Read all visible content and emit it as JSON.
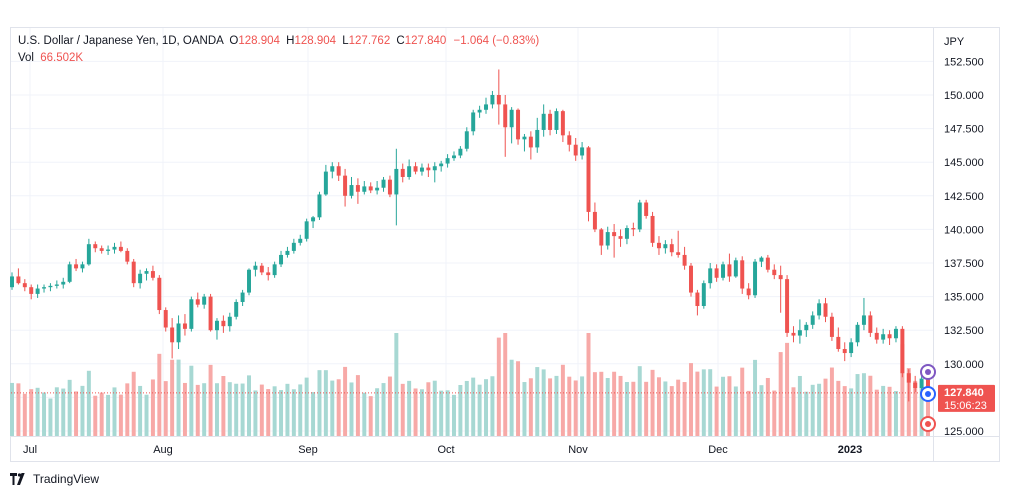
{
  "legend": {
    "symbol": "U.S. Dollar / Japanese Yen, 1D, OANDA",
    "o_key": "O",
    "open": "128.904",
    "h_key": "H",
    "high": "128.904",
    "l_key": "L",
    "low": "127.762",
    "c_key": "C",
    "close": "127.840",
    "change": "−1.064 (−0.83%)",
    "vol_key": "Vol",
    "vol": "66.502K"
  },
  "branding": {
    "logo_text": "TradingView",
    "icon": "tradingview-logo-icon"
  },
  "colors": {
    "up": "#26a69a",
    "down": "#ef5350",
    "vol_up": "#a7d8d3",
    "vol_down": "#f7a9a7",
    "grid": "#f0f3fa"
  },
  "chart_data": {
    "type": "candlestick",
    "currency": "JPY",
    "y_ticks": [
      "152.500",
      "150.000",
      "147.500",
      "145.000",
      "142.500",
      "140.000",
      "137.500",
      "135.000",
      "132.500",
      "130.000",
      "127.500",
      "125.000"
    ],
    "x_ticks": [
      "Jul",
      "Aug",
      "Sep",
      "Oct",
      "Nov",
      "Dec",
      "2023"
    ],
    "ylim": [
      125.0,
      153.0
    ],
    "last_price": "127.840",
    "countdown": "15:06:23",
    "candles": [
      [
        135.7,
        136.8,
        135.5,
        136.5
      ],
      [
        136.5,
        137.1,
        135.9,
        136.0
      ],
      [
        136.0,
        136.3,
        135.4,
        135.7
      ],
      [
        135.7,
        135.9,
        134.8,
        135.2
      ],
      [
        135.2,
        135.9,
        134.9,
        135.6
      ],
      [
        135.6,
        135.9,
        135.3,
        135.7
      ],
      [
        135.7,
        136.0,
        135.4,
        135.8
      ],
      [
        135.8,
        136.2,
        135.6,
        135.9
      ],
      [
        135.9,
        136.4,
        135.6,
        136.1
      ],
      [
        136.1,
        137.6,
        136.0,
        137.4
      ],
      [
        137.4,
        137.8,
        136.9,
        137.1
      ],
      [
        137.1,
        137.6,
        136.8,
        137.4
      ],
      [
        137.4,
        139.3,
        137.3,
        138.9
      ],
      [
        138.9,
        139.1,
        138.3,
        138.6
      ],
      [
        138.6,
        138.8,
        138.2,
        138.4
      ],
      [
        138.4,
        138.8,
        138.1,
        138.5
      ],
      [
        138.5,
        139.0,
        138.2,
        138.7
      ],
      [
        138.7,
        139.1,
        138.3,
        138.4
      ],
      [
        138.4,
        138.6,
        137.4,
        137.6
      ],
      [
        137.6,
        137.8,
        135.7,
        136.0
      ],
      [
        136.0,
        137.0,
        135.6,
        136.7
      ],
      [
        136.7,
        137.1,
        136.2,
        136.9
      ],
      [
        136.9,
        137.3,
        136.2,
        136.4
      ],
      [
        136.4,
        136.6,
        133.7,
        134.0
      ],
      [
        134.0,
        134.2,
        132.4,
        132.7
      ],
      [
        132.7,
        133.4,
        130.4,
        131.6
      ],
      [
        131.6,
        133.6,
        131.1,
        133.0
      ],
      [
        133.0,
        133.7,
        132.1,
        132.6
      ],
      [
        132.6,
        135.0,
        132.4,
        134.8
      ],
      [
        134.8,
        135.3,
        134.2,
        134.4
      ],
      [
        134.4,
        135.2,
        134.1,
        135.0
      ],
      [
        135.0,
        135.2,
        132.4,
        132.5
      ],
      [
        132.5,
        133.4,
        131.8,
        133.2
      ],
      [
        133.2,
        133.6,
        132.3,
        132.8
      ],
      [
        132.8,
        133.8,
        132.4,
        133.5
      ],
      [
        133.5,
        134.8,
        133.3,
        134.6
      ],
      [
        134.6,
        135.5,
        134.3,
        135.3
      ],
      [
        135.3,
        137.1,
        135.1,
        137.0
      ],
      [
        137.0,
        137.6,
        136.5,
        137.3
      ],
      [
        137.3,
        137.5,
        136.6,
        136.8
      ],
      [
        136.8,
        137.2,
        136.2,
        136.6
      ],
      [
        136.6,
        137.6,
        136.4,
        137.4
      ],
      [
        137.4,
        138.4,
        137.2,
        138.1
      ],
      [
        138.1,
        138.7,
        137.9,
        138.4
      ],
      [
        138.4,
        139.3,
        138.2,
        139.0
      ],
      [
        139.0,
        139.6,
        138.8,
        139.3
      ],
      [
        139.3,
        140.8,
        139.1,
        140.6
      ],
      [
        140.6,
        141.0,
        140.1,
        140.9
      ],
      [
        140.9,
        142.8,
        140.7,
        142.6
      ],
      [
        142.6,
        144.8,
        142.5,
        144.3
      ],
      [
        144.3,
        145.0,
        143.8,
        144.7
      ],
      [
        144.7,
        145.0,
        143.6,
        144.0
      ],
      [
        144.0,
        144.5,
        141.7,
        142.5
      ],
      [
        142.5,
        143.9,
        142.3,
        143.3
      ],
      [
        143.3,
        143.8,
        141.9,
        142.8
      ],
      [
        142.8,
        143.6,
        142.6,
        143.2
      ],
      [
        143.2,
        143.5,
        142.7,
        142.9
      ],
      [
        142.9,
        143.6,
        142.6,
        143.1
      ],
      [
        143.1,
        143.9,
        142.8,
        143.7
      ],
      [
        143.7,
        144.0,
        142.4,
        142.6
      ],
      [
        142.6,
        146.0,
        140.3,
        144.5
      ],
      [
        144.5,
        144.9,
        143.5,
        143.9
      ],
      [
        143.9,
        145.2,
        143.7,
        144.7
      ],
      [
        144.7,
        145.0,
        144.1,
        144.3
      ],
      [
        144.3,
        144.9,
        144.0,
        144.6
      ],
      [
        144.6,
        144.9,
        143.9,
        144.4
      ],
      [
        144.4,
        145.0,
        143.5,
        144.7
      ],
      [
        144.7,
        145.1,
        144.3,
        144.9
      ],
      [
        144.9,
        145.6,
        144.6,
        145.3
      ],
      [
        145.3,
        145.8,
        145.1,
        145.5
      ],
      [
        145.5,
        146.2,
        145.3,
        146.0
      ],
      [
        146.0,
        147.6,
        145.8,
        147.3
      ],
      [
        147.3,
        148.9,
        147.0,
        148.7
      ],
      [
        148.7,
        149.2,
        148.3,
        148.9
      ],
      [
        148.9,
        149.8,
        148.6,
        149.3
      ],
      [
        149.3,
        150.3,
        149.0,
        150.0
      ],
      [
        150.0,
        151.9,
        147.8,
        149.3
      ],
      [
        149.3,
        150.0,
        145.4,
        147.6
      ],
      [
        147.6,
        149.1,
        146.4,
        148.9
      ],
      [
        148.9,
        149.0,
        146.3,
        146.7
      ],
      [
        146.7,
        147.1,
        145.8,
        146.9
      ],
      [
        146.9,
        147.3,
        145.2,
        146.1
      ],
      [
        146.1,
        148.3,
        145.7,
        147.4
      ],
      [
        147.4,
        149.3,
        146.9,
        148.6
      ],
      [
        148.6,
        148.9,
        147.0,
        147.4
      ],
      [
        147.4,
        149.0,
        147.1,
        148.8
      ],
      [
        148.8,
        148.9,
        146.5,
        147.0
      ],
      [
        147.0,
        147.3,
        145.8,
        146.3
      ],
      [
        146.3,
        146.8,
        145.1,
        145.5
      ],
      [
        145.5,
        146.5,
        145.2,
        146.1
      ],
      [
        146.1,
        146.2,
        140.6,
        141.3
      ],
      [
        141.3,
        142.0,
        139.8,
        140.0
      ],
      [
        140.0,
        140.1,
        138.1,
        138.8
      ],
      [
        138.8,
        140.2,
        138.5,
        139.8
      ],
      [
        139.8,
        140.4,
        137.9,
        139.5
      ],
      [
        139.5,
        140.0,
        138.7,
        139.3
      ],
      [
        139.3,
        140.3,
        138.9,
        140.1
      ],
      [
        140.1,
        140.5,
        139.5,
        140.0
      ],
      [
        140.0,
        142.2,
        139.8,
        142.0
      ],
      [
        142.0,
        142.2,
        140.8,
        141.0
      ],
      [
        141.0,
        141.3,
        138.7,
        139.0
      ],
      [
        139.0,
        139.5,
        138.1,
        138.6
      ],
      [
        138.6,
        139.2,
        138.2,
        138.9
      ],
      [
        138.9,
        139.3,
        138.0,
        138.3
      ],
      [
        138.3,
        139.9,
        137.9,
        138.1
      ],
      [
        138.1,
        138.7,
        137.0,
        137.3
      ],
      [
        137.3,
        137.5,
        135.0,
        135.3
      ],
      [
        135.3,
        135.5,
        133.6,
        134.3
      ],
      [
        134.3,
        136.2,
        134.1,
        136.0
      ],
      [
        136.0,
        137.5,
        135.6,
        137.1
      ],
      [
        137.1,
        137.4,
        136.1,
        136.4
      ],
      [
        136.4,
        137.6,
        136.2,
        137.4
      ],
      [
        137.4,
        138.2,
        136.1,
        136.5
      ],
      [
        136.5,
        137.9,
        136.4,
        137.7
      ],
      [
        137.7,
        138.0,
        135.2,
        135.6
      ],
      [
        135.6,
        136.0,
        134.8,
        135.1
      ],
      [
        135.1,
        137.8,
        134.9,
        137.6
      ],
      [
        137.6,
        138.0,
        137.2,
        137.9
      ],
      [
        137.9,
        138.1,
        136.8,
        137.0
      ],
      [
        137.0,
        137.4,
        136.3,
        136.6
      ],
      [
        136.6,
        137.3,
        133.8,
        136.3
      ],
      [
        136.3,
        136.6,
        132.0,
        132.3
      ],
      [
        132.3,
        132.8,
        131.6,
        132.1
      ],
      [
        132.1,
        133.3,
        131.5,
        132.5
      ],
      [
        132.5,
        133.1,
        132.0,
        132.9
      ],
      [
        132.9,
        133.9,
        132.6,
        133.6
      ],
      [
        133.6,
        134.8,
        133.3,
        134.5
      ],
      [
        134.5,
        134.9,
        133.1,
        133.5
      ],
      [
        133.5,
        133.8,
        131.7,
        132.0
      ],
      [
        132.0,
        132.7,
        130.9,
        131.1
      ],
      [
        131.1,
        131.6,
        130.2,
        130.8
      ],
      [
        130.8,
        131.9,
        130.5,
        131.6
      ],
      [
        131.6,
        133.1,
        131.3,
        132.9
      ],
      [
        132.9,
        134.9,
        132.5,
        133.6
      ],
      [
        133.6,
        133.9,
        132.0,
        132.3
      ],
      [
        132.3,
        132.7,
        131.5,
        131.8
      ],
      [
        131.8,
        132.6,
        131.5,
        132.2
      ],
      [
        132.2,
        132.5,
        131.4,
        131.9
      ],
      [
        131.9,
        132.8,
        131.6,
        132.6
      ],
      [
        132.6,
        132.8,
        129.0,
        129.3
      ],
      [
        129.3,
        129.6,
        127.2,
        128.6
      ],
      [
        128.6,
        129.1,
        127.9,
        128.2
      ],
      [
        128.2,
        129.2,
        127.6,
        128.9
      ],
      [
        128.9,
        128.9,
        127.76,
        127.84
      ]
    ],
    "volume": [
      {
        "label": "Vol",
        "value": "66.502K"
      }
    ]
  }
}
